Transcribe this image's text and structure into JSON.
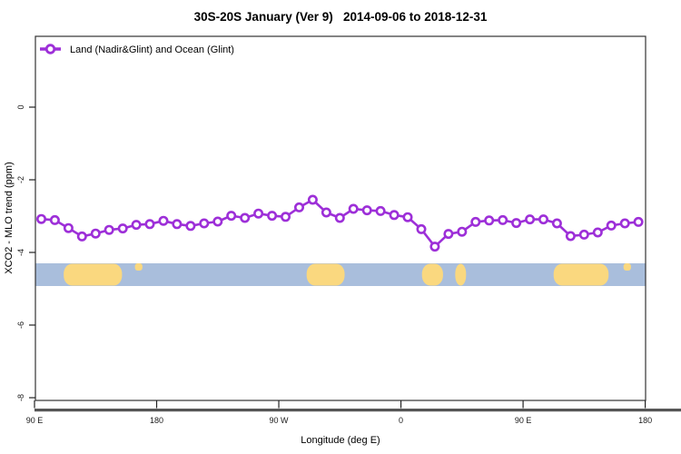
{
  "title": "30S-20S January (Ver 9)   2014-09-06 to 2018-12-31",
  "legend": {
    "label": "Land (Nadir&Glint) and Ocean (Glint)"
  },
  "axes": {
    "xlabel": "Longitude (deg E)",
    "ylabel": "XCO2 - MLO trend (ppm)"
  },
  "colors": {
    "line": "#9D2FD8",
    "ocean": "#A9BEDC",
    "land": "#FAD87F",
    "axis_rule": "#565656",
    "box": "#333333"
  },
  "chart_data": {
    "type": "line",
    "title": "30S-20S January (Ver 9)   2014-09-06 to 2018-12-31",
    "xlabel": "Longitude (deg E)",
    "ylabel": "XCO2 - MLO trend (ppm)",
    "grid": false,
    "legend_position": "top-left",
    "marker": "open-circle",
    "x_axis": {
      "range": [
        90,
        540
      ],
      "ticks": [
        {
          "lon": 90,
          "label": "90 E"
        },
        {
          "lon": 180,
          "label": "180"
        },
        {
          "lon": 270,
          "label": "90 W"
        },
        {
          "lon": 360,
          "label": "0"
        },
        {
          "lon": 450,
          "label": "90 E"
        },
        {
          "lon": 540,
          "label": "180"
        }
      ]
    },
    "y_axis": {
      "range": [
        -8.1,
        1.95
      ],
      "ticks": [
        {
          "value": 0,
          "label": "0"
        },
        {
          "value": -2,
          "label": "-2"
        },
        {
          "value": -4,
          "label": "-4"
        },
        {
          "value": -6,
          "label": "-6"
        },
        {
          "value": -8,
          "label": "-8"
        }
      ]
    },
    "series": [
      {
        "name": "Land (Nadir&Glint) and Ocean (Glint)",
        "x": [
          95,
          105,
          115,
          125,
          135,
          145,
          155,
          165,
          175,
          185,
          195,
          205,
          215,
          225,
          235,
          245,
          255,
          265,
          275,
          285,
          295,
          305,
          315,
          325,
          335,
          345,
          355,
          365,
          375,
          385,
          395,
          405,
          415,
          425,
          435,
          445,
          455,
          465,
          475,
          485,
          495,
          505,
          515,
          525,
          535
        ],
        "values": [
          -3.08,
          -3.11,
          -3.33,
          -3.56,
          -3.48,
          -3.38,
          -3.34,
          -3.24,
          -3.22,
          -3.13,
          -3.22,
          -3.27,
          -3.2,
          -3.15,
          -2.99,
          -3.05,
          -2.93,
          -2.99,
          -3.02,
          -2.76,
          -2.55,
          -2.9,
          -3.05,
          -2.8,
          -2.84,
          -2.86,
          -2.97,
          -3.03,
          -3.36,
          -3.84,
          -3.49,
          -3.43,
          -3.16,
          -3.12,
          -3.11,
          -3.19,
          -3.09,
          -3.09,
          -3.2,
          -3.55,
          -3.51,
          -3.45,
          -3.26,
          -3.2,
          -3.16
        ]
      }
    ],
    "map_band": {
      "value_top": -4.3,
      "value_bottom": -4.925,
      "land_segments": [
        {
          "name": "australia",
          "from": 111.5,
          "to": 154.5,
          "align": "full"
        },
        {
          "name": "islands",
          "from": 164.0,
          "to": 169.5,
          "align": "top"
        },
        {
          "name": "south-america",
          "from": 290.5,
          "to": 318.5,
          "align": "full"
        },
        {
          "name": "africa",
          "from": 375.5,
          "to": 391.0,
          "align": "full"
        },
        {
          "name": "madagascar",
          "from": 400.0,
          "to": 408.0,
          "align": "full"
        },
        {
          "name": "australia-2",
          "from": 472.5,
          "to": 513.0,
          "align": "full"
        },
        {
          "name": "islands-2",
          "from": 524.0,
          "to": 529.5,
          "align": "top"
        }
      ]
    }
  }
}
